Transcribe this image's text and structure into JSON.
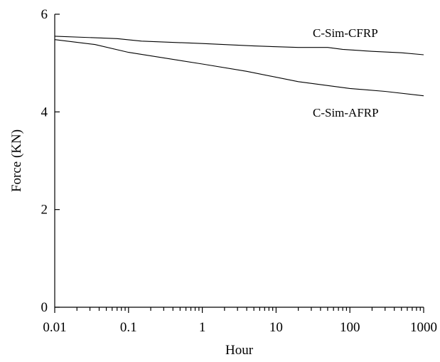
{
  "chart_data": {
    "type": "line",
    "title": "",
    "xlabel": "Hour",
    "ylabel": "Force (KN)",
    "x_scale": "log",
    "xlim": [
      0.01,
      1000
    ],
    "ylim": [
      0,
      6
    ],
    "x_ticks": [
      0.01,
      0.1,
      1,
      10,
      100,
      1000
    ],
    "x_tick_labels": [
      "0.01",
      "0.1",
      "1",
      "10",
      "100",
      "1000"
    ],
    "y_ticks": [
      0,
      2,
      4,
      6
    ],
    "y_tick_labels": [
      "0",
      "2",
      "4",
      "6"
    ],
    "grid": false,
    "legend": "none",
    "series": [
      {
        "name": "C-Sim-CFRP",
        "x": [
          0.01,
          0.07,
          0.15,
          1,
          5,
          20,
          50,
          80,
          200,
          500,
          1000
        ],
        "y": [
          5.55,
          5.5,
          5.45,
          5.4,
          5.35,
          5.32,
          5.32,
          5.28,
          5.24,
          5.21,
          5.17
        ]
      },
      {
        "name": "C-Sim-AFRP",
        "x": [
          0.01,
          0.035,
          0.1,
          1,
          4,
          20,
          100,
          300,
          1000
        ],
        "y": [
          5.48,
          5.38,
          5.22,
          4.98,
          4.83,
          4.62,
          4.48,
          4.42,
          4.33
        ]
      }
    ]
  }
}
